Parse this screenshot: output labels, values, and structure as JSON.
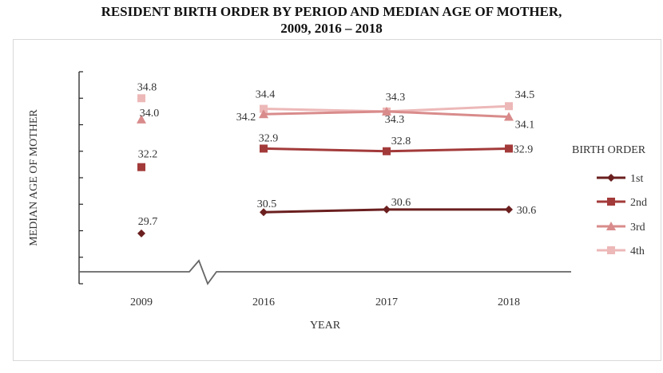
{
  "chart_data": {
    "type": "line",
    "title_line1": "RESIDENT BIRTH ORDER BY PERIOD AND MEDIAN AGE OF MOTHER,",
    "title_line2": "2009, 2016 – 2018",
    "xlabel": "YEAR",
    "ylabel": "MEDIAN AGE OF MOTHER",
    "categories": [
      "2009",
      "2016",
      "2017",
      "2018"
    ],
    "axis_break_between": [
      "2009",
      "2016"
    ],
    "ylim": [
      27.8,
      35.8
    ],
    "legend_title": "BIRTH ORDER",
    "legend_position": "right",
    "grid": false,
    "series": [
      {
        "name": "1st",
        "values": [
          29.7,
          30.5,
          30.6,
          30.6
        ],
        "color": "#6b1f1f",
        "marker": "diamond",
        "labels": [
          "29.7",
          "30.5",
          "30.6",
          "30.6"
        ]
      },
      {
        "name": "2nd",
        "values": [
          32.2,
          32.9,
          32.8,
          32.9
        ],
        "color": "#a33a3a",
        "marker": "square",
        "labels": [
          "32.2",
          "32.9",
          "32.8",
          "32.9"
        ]
      },
      {
        "name": "3rd",
        "values": [
          34.0,
          34.2,
          34.3,
          34.1
        ],
        "color": "#d98b8b",
        "marker": "triangle",
        "labels": [
          "34.0",
          "34.2",
          "34.3",
          "34.1"
        ]
      },
      {
        "name": "4th",
        "values": [
          34.8,
          34.4,
          34.3,
          34.5
        ],
        "color": "#edb8b8",
        "marker": "square",
        "labels": [
          "34.8",
          "34.4",
          "34.3",
          "34.5"
        ]
      }
    ]
  }
}
